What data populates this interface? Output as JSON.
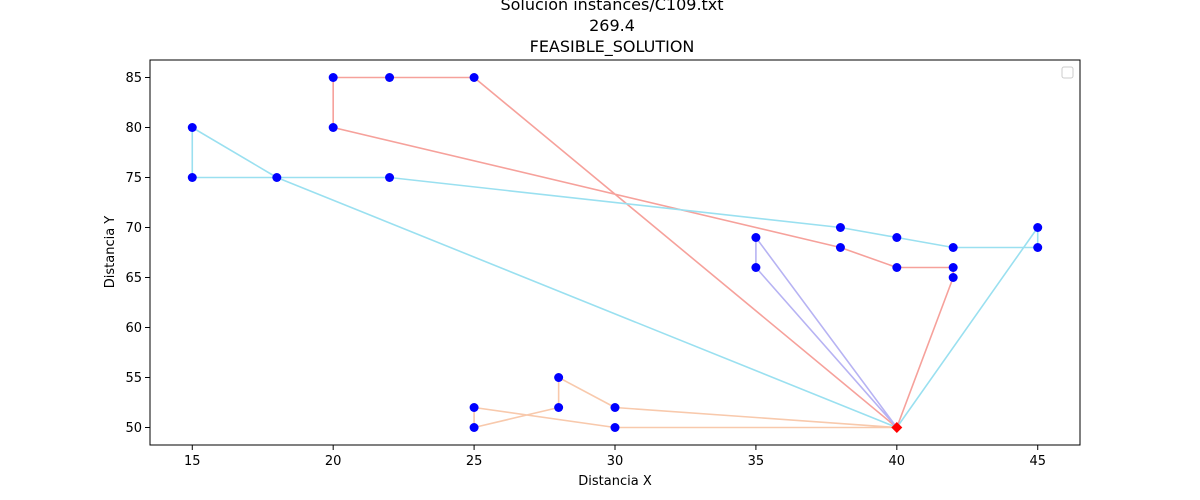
{
  "chart_data": {
    "type": "line",
    "title_lines": [
      "Solución instances/C109.txt",
      "269.4",
      "FEASIBLE_SOLUTION"
    ],
    "xlabel": "Distancia X",
    "ylabel": "Distancia Y",
    "xlim": [
      13.5,
      46.5
    ],
    "ylim": [
      48.25,
      86.75
    ],
    "xticks": [
      15,
      20,
      25,
      30,
      35,
      40,
      45
    ],
    "yticks": [
      50,
      55,
      60,
      65,
      70,
      75,
      80,
      85
    ],
    "legend": "top-right",
    "depot": {
      "x": 40,
      "y": 50,
      "color": "#ff0000"
    },
    "customer_color": "#0000ff",
    "routes": [
      {
        "color": "#f6a19b",
        "points": [
          [
            40,
            50
          ],
          [
            42,
            65
          ],
          [
            42,
            66
          ],
          [
            40,
            66
          ],
          [
            38,
            68
          ],
          [
            20,
            80
          ],
          [
            20,
            85
          ],
          [
            22,
            85
          ],
          [
            25,
            85
          ],
          [
            40,
            50
          ]
        ]
      },
      {
        "color": "#9ae0f0",
        "points": [
          [
            40,
            50
          ],
          [
            45,
            70
          ],
          [
            45,
            68
          ],
          [
            42,
            68
          ],
          [
            40,
            69
          ],
          [
            38,
            70
          ],
          [
            22,
            75
          ],
          [
            18,
            75
          ],
          [
            15,
            75
          ],
          [
            15,
            80
          ],
          [
            18,
            75
          ],
          [
            40,
            50
          ]
        ]
      },
      {
        "color": "#b7b3f3",
        "points": [
          [
            40,
            50
          ],
          [
            35,
            66
          ],
          [
            35,
            69
          ],
          [
            40,
            50
          ]
        ]
      },
      {
        "color": "#f8c9ac",
        "points": [
          [
            40,
            50
          ],
          [
            30,
            52
          ],
          [
            28,
            55
          ],
          [
            28,
            52
          ],
          [
            25,
            50
          ],
          [
            25,
            52
          ],
          [
            30,
            50
          ],
          [
            40,
            50
          ]
        ]
      }
    ]
  }
}
